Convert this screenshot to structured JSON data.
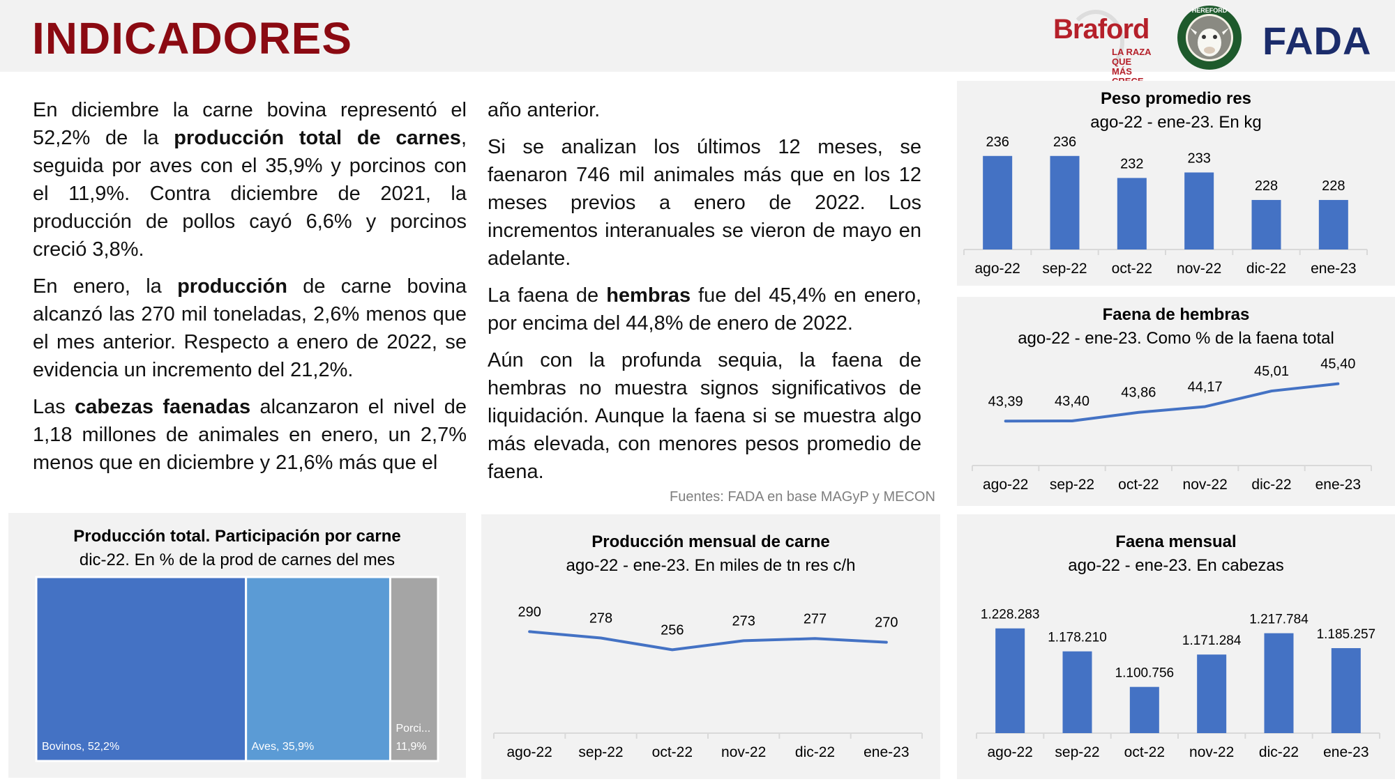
{
  "header": {
    "title": "INDICADORES"
  },
  "logos": {
    "braford": {
      "name": "Braford",
      "tagline_1": "LA RAZA QUE",
      "tagline_2": "MÁS CRECE"
    },
    "hereford": {
      "name": "HEREFORD"
    },
    "fada": {
      "name": "FADA"
    }
  },
  "text": {
    "col1": {
      "p1": {
        "t1": "En diciembre la carne bovina representó el 52,2% de la ",
        "b1": "producción total de carnes",
        "t2": ", seguida por aves con el 35,9% y porcinos con el 11,9%. Contra diciembre de 2021, la producción de pollos cayó 6,6% y porcinos creció 3,8%."
      },
      "p2": {
        "t1": "En enero, la ",
        "b1": "producción",
        "t2": " de carne bovina alcanzó las 270 mil toneladas, 2,6% menos que el mes anterior. Respecto a enero de 2022, se evidencia un incremento del 21,2%."
      },
      "p3": {
        "t1": "Las ",
        "b1": "cabezas faenadas",
        "t2": " alcanzaron el nivel de 1,18 millones de animales en enero, un 2,7% menos que en diciembre y 21,6% más que el"
      }
    },
    "col2": {
      "p1": "año anterior.",
      "p2": "Si se analizan los últimos 12 meses, se faenaron 746 mil animales más que en los 12 meses previos a enero de 2022. Los incrementos interanuales se vieron de mayo en adelante.",
      "p3": {
        "t1": "La faena de ",
        "b1": "hembras",
        "t2": " fue del 45,4% en enero, por encima del 44,8% de enero de 2022."
      },
      "p4": "Aún con la profunda sequia, la faena de hembras no muestra signos significativos de liquidación. Aunque la faena si se muestra algo más elevada, con menores pesos promedio de faena."
    },
    "source": "Fuentes: FADA en base MAGyP y MECON"
  },
  "colors": {
    "bar": "#4472c4",
    "bovinos": "#4472c4",
    "aves": "#5b9bd5",
    "porcinos": "#a5a5a5",
    "title_red": "#8b0a12"
  },
  "chart_data": [
    {
      "id": "peso",
      "type": "bar",
      "title": "Peso promedio res",
      "subtitle": "ago-22 - ene-23. En kg",
      "categories": [
        "ago-22",
        "sep-22",
        "oct-22",
        "nov-22",
        "dic-22",
        "ene-23"
      ],
      "values": [
        236,
        236,
        232,
        233,
        228,
        228
      ],
      "value_labels": [
        "236",
        "236",
        "232",
        "233",
        "228",
        "228"
      ],
      "ylim": [
        219,
        238
      ]
    },
    {
      "id": "hembras",
      "type": "line",
      "title": "Faena de hembras",
      "subtitle": "ago-22 - ene-23. Como % de la faena total",
      "categories": [
        "ago-22",
        "sep-22",
        "oct-22",
        "nov-22",
        "dic-22",
        "ene-23"
      ],
      "values": [
        43.39,
        43.4,
        43.86,
        44.17,
        45.01,
        45.4
      ],
      "value_labels": [
        "43,39",
        "43,40",
        "43,86",
        "44,17",
        "45,01",
        "45,40"
      ],
      "ylim": [
        41,
        47
      ]
    },
    {
      "id": "participacion",
      "type": "treemap",
      "title": "Producción total. Participación por carne",
      "subtitle": "dic-22. En % de la prod de carnes del mes",
      "categories": [
        "Bovinos",
        "Aves",
        "Porcinos"
      ],
      "values": [
        52.2,
        35.9,
        11.9
      ],
      "labels": [
        "Bovinos, 52,2%",
        "Aves, 35,9%",
        "Porci..."
      ],
      "extra_label": "11,9%"
    },
    {
      "id": "produccion",
      "type": "line",
      "title": "Producción mensual de carne",
      "subtitle": "ago-22 - ene-23. En miles de tn res c/h",
      "categories": [
        "ago-22",
        "sep-22",
        "oct-22",
        "nov-22",
        "dic-22",
        "ene-23"
      ],
      "values": [
        290,
        278,
        256,
        273,
        277,
        270
      ],
      "value_labels": [
        "290",
        "278",
        "256",
        "273",
        "277",
        "270"
      ],
      "ylim": [
        100,
        340
      ]
    },
    {
      "id": "faena",
      "type": "bar",
      "title": "Faena mensual",
      "subtitle": "ago-22 - ene-23. En cabezas",
      "categories": [
        "ago-22",
        "sep-22",
        "oct-22",
        "nov-22",
        "dic-22",
        "ene-23"
      ],
      "values": [
        1228283,
        1178210,
        1100756,
        1171284,
        1217784,
        1185257
      ],
      "value_labels": [
        "1.228.283",
        "1.178.210",
        "1.100.756",
        "1.171.284",
        "1.217.784",
        "1.185.257"
      ],
      "ylim": [
        1000000,
        1240000
      ]
    }
  ]
}
